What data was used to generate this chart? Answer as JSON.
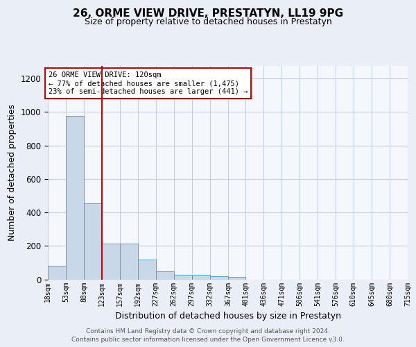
{
  "title_line1": "26, ORME VIEW DRIVE, PRESTATYN, LL19 9PG",
  "title_line2": "Size of property relative to detached houses in Prestatyn",
  "xlabel": "Distribution of detached houses by size in Prestatyn",
  "ylabel": "Number of detached properties",
  "bar_color": "#c8d8e8",
  "bar_edge_color": "#5a9fd4",
  "grid_color": "#c8d0dc",
  "vline_color": "#cc0000",
  "vline_x": 123,
  "annotation_text": "26 ORME VIEW DRIVE: 120sqm\n← 77% of detached houses are smaller (1,475)\n23% of semi-detached houses are larger (441) →",
  "annotation_box_color": "white",
  "annotation_box_edge_color": "#cc0000",
  "bin_edges": [
    18,
    53,
    88,
    123,
    157,
    192,
    227,
    262,
    297,
    332,
    367,
    401,
    436,
    471,
    506,
    541,
    576,
    610,
    645,
    680,
    715
  ],
  "bar_heights": [
    80,
    975,
    455,
    215,
    215,
    120,
    47,
    25,
    25,
    20,
    13,
    0,
    0,
    0,
    0,
    0,
    0,
    0,
    0,
    0
  ],
  "ylim": [
    0,
    1275
  ],
  "yticks": [
    0,
    200,
    400,
    600,
    800,
    1000,
    1200
  ],
  "footer_text": "Contains HM Land Registry data © Crown copyright and database right 2024.\nContains public sector information licensed under the Open Government Licence v3.0.",
  "background_color": "#eaeff7",
  "plot_background_color": "#f4f7fc"
}
